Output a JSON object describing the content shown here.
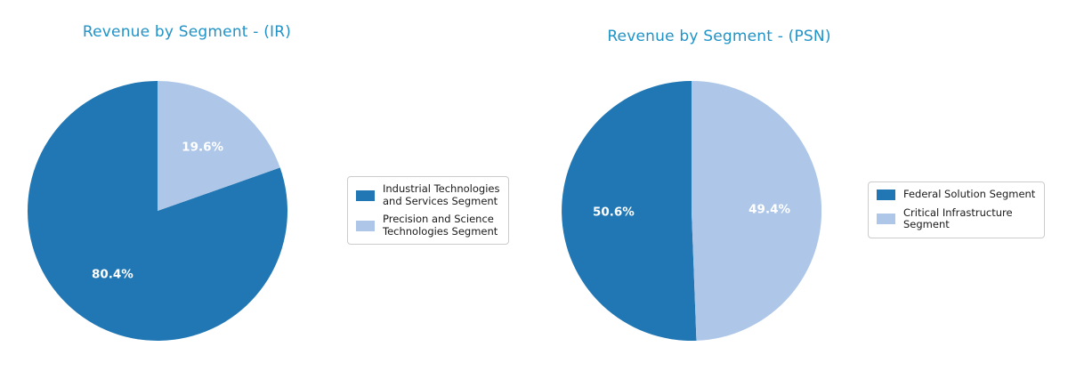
{
  "theme": {
    "title_color": "#2193c7",
    "dark_blue": "#2077b4",
    "light_blue": "#aec7e8",
    "pct_label_color": "#ffffff",
    "legend_border": "#cccccc",
    "background": "#ffffff"
  },
  "chart_data": [
    {
      "type": "pie",
      "title": "Revenue by Segment - (IR)",
      "labels": [
        "Industrial Technologies and Services Segment",
        "Precision and Science Technologies Segment"
      ],
      "values": [
        80.4,
        19.6
      ],
      "pct_labels": [
        "80.4%",
        "19.6%"
      ],
      "colors": [
        "#2077b4",
        "#aec7e8"
      ],
      "start_angle": 90,
      "counterclock": true,
      "label_radius": 0.6,
      "legend_position": "center right",
      "legend": {
        "items": [
          {
            "color": "#2077b4",
            "lines": [
              "Industrial Technologies",
              "and Services Segment"
            ]
          },
          {
            "color": "#aec7e8",
            "lines": [
              "Precision and Science",
              "Technologies Segment"
            ]
          }
        ]
      }
    },
    {
      "type": "pie",
      "title": "Revenue by Segment - (PSN)",
      "labels": [
        "Federal Solution Segment",
        "Critical Infrastructure Segment"
      ],
      "values": [
        50.6,
        49.4
      ],
      "pct_labels": [
        "50.6%",
        "49.4%"
      ],
      "colors": [
        "#2077b4",
        "#aec7e8"
      ],
      "start_angle": 90,
      "counterclock": true,
      "label_radius": 0.6,
      "legend_position": "center right",
      "legend": {
        "items": [
          {
            "color": "#2077b4",
            "lines": [
              "Federal Solution Segment"
            ]
          },
          {
            "color": "#aec7e8",
            "lines": [
              "Critical Infrastructure",
              "Segment"
            ]
          }
        ]
      }
    }
  ]
}
